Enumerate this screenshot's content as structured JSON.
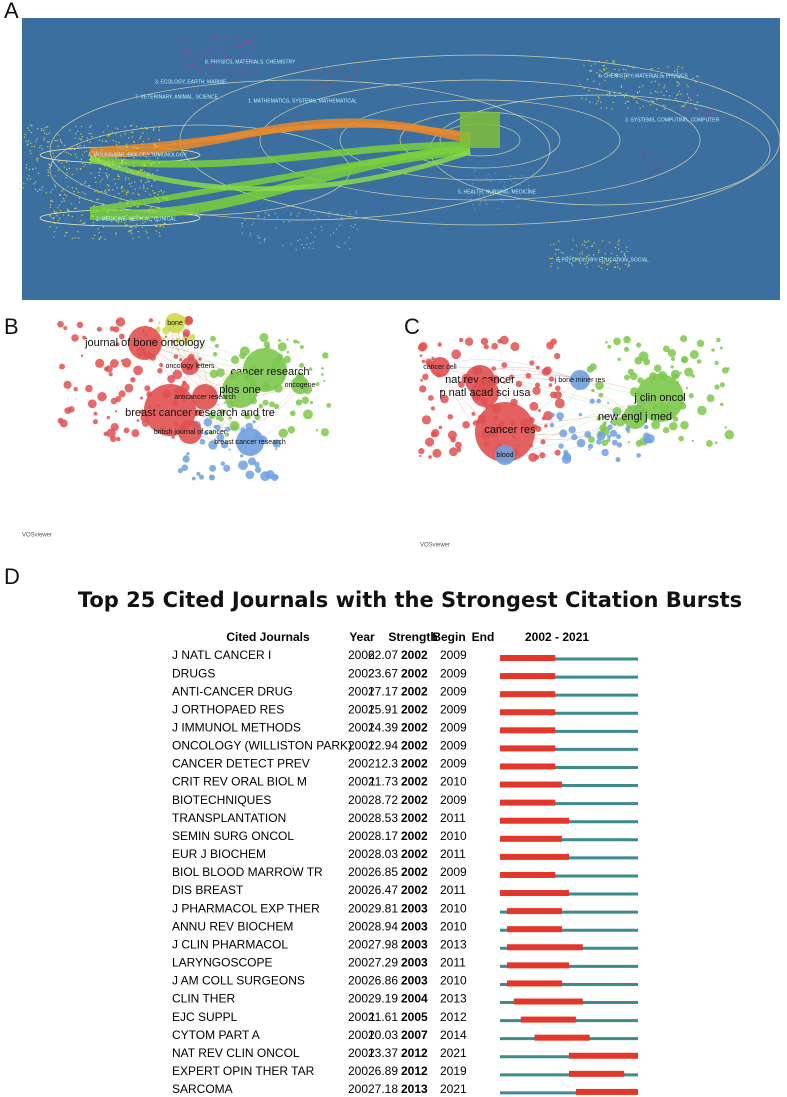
{
  "panels": {
    "a": {
      "label": "A",
      "clusters": [
        "8. PHYSICS, MATERIALS, CHEMISTRY",
        "3. ECOLOGY, EARTH, MARINE",
        "7. VETERINARY, ANIMAL, SCIENCE",
        "1. MATHEMATICS, SYSTEMS, MATHEMATICAL",
        "4. MOLECULAR, BIOLOGY, IMMUNOLOGY",
        "2. MEDICINE, MEDICAL, CLINICAL",
        "4. CHEMISTRY, MATERIALS, PHYSICS",
        "5. HEALTH, NURSING, MEDICINE",
        "6. PSYCHOLOGY, EDUCATION, SOCIAL",
        "3. SYSTEMS, COMPUTING, COMPUTER"
      ]
    },
    "b": {
      "label": "B",
      "nodes": [
        "cancer research",
        "plos one",
        "breast cancer research and tre",
        "journal of bone oncology",
        "bone",
        "anticancer research",
        "british journal of cancer",
        "breast cancer research",
        "oncogene",
        "oncology letters"
      ],
      "watermark": "VOSviewer"
    },
    "c": {
      "label": "C",
      "nodes": [
        "cancer res",
        "j clin oncol",
        "new engl j med",
        "nat rev cancer",
        "p natl acad sci usa",
        "j bone miner res",
        "blood",
        "cancer cell"
      ],
      "watermark": "VOSviewer"
    },
    "d": {
      "label": "D",
      "title": "Top 25 Cited Journals with the Strongest Citation Bursts",
      "table": {
        "headers": [
          "Cited Journals",
          "Year",
          "Strength",
          "Begin",
          "End"
        ],
        "range": [
          2002,
          2021
        ],
        "rows": [
          {
            "journal": "J NATL CANCER I",
            "year": 2002,
            "strength": 62.07,
            "begin": 2002,
            "end": 2009
          },
          {
            "journal": "DRUGS",
            "year": 2002,
            "strength": 23.67,
            "begin": 2002,
            "end": 2009
          },
          {
            "journal": "ANTI-CANCER DRUG",
            "year": 2002,
            "strength": 17.17,
            "begin": 2002,
            "end": 2009
          },
          {
            "journal": "J ORTHOPAED RES",
            "year": 2002,
            "strength": 15.91,
            "begin": 2002,
            "end": 2009
          },
          {
            "journal": "J IMMUNOL METHODS",
            "year": 2002,
            "strength": 14.39,
            "begin": 2002,
            "end": 2009
          },
          {
            "journal": "ONCOLOGY (WILLISTON PARK)",
            "year": 2002,
            "strength": 12.94,
            "begin": 2002,
            "end": 2009
          },
          {
            "journal": "CANCER DETECT PREV",
            "year": 2002,
            "strength": 12.3,
            "begin": 2002,
            "end": 2009
          },
          {
            "journal": "CRIT REV ORAL BIOL M",
            "year": 2002,
            "strength": 11.73,
            "begin": 2002,
            "end": 2010
          },
          {
            "journal": "BIOTECHNIQUES",
            "year": 2002,
            "strength": 8.72,
            "begin": 2002,
            "end": 2009
          },
          {
            "journal": "TRANSPLANTATION",
            "year": 2002,
            "strength": 8.53,
            "begin": 2002,
            "end": 2011
          },
          {
            "journal": "SEMIN SURG ONCOL",
            "year": 2002,
            "strength": 8.17,
            "begin": 2002,
            "end": 2010
          },
          {
            "journal": "EUR J BIOCHEM",
            "year": 2002,
            "strength": 8.03,
            "begin": 2002,
            "end": 2011
          },
          {
            "journal": "BIOL BLOOD MARROW TR",
            "year": 2002,
            "strength": 6.85,
            "begin": 2002,
            "end": 2009
          },
          {
            "journal": "DIS BREAST",
            "year": 2002,
            "strength": 6.47,
            "begin": 2002,
            "end": 2011
          },
          {
            "journal": "J PHARMACOL EXP THER",
            "year": 2002,
            "strength": 9.81,
            "begin": 2003,
            "end": 2010
          },
          {
            "journal": "ANNU REV BIOCHEM",
            "year": 2002,
            "strength": 8.94,
            "begin": 2003,
            "end": 2010
          },
          {
            "journal": "J CLIN PHARMACOL",
            "year": 2002,
            "strength": 7.98,
            "begin": 2003,
            "end": 2013
          },
          {
            "journal": "LARYNGOSCOPE",
            "year": 2002,
            "strength": 7.29,
            "begin": 2003,
            "end": 2011
          },
          {
            "journal": "J AM COLL SURGEONS",
            "year": 2002,
            "strength": 6.86,
            "begin": 2003,
            "end": 2010
          },
          {
            "journal": "CLIN THER",
            "year": 2002,
            "strength": 9.19,
            "begin": 2004,
            "end": 2013
          },
          {
            "journal": "EJC SUPPL",
            "year": 2002,
            "strength": 11.61,
            "begin": 2005,
            "end": 2012
          },
          {
            "journal": "CYTOM PART A",
            "year": 2002,
            "strength": 10.03,
            "begin": 2007,
            "end": 2014
          },
          {
            "journal": "NAT REV CLIN ONCOL",
            "year": 2002,
            "strength": 13.37,
            "begin": 2012,
            "end": 2021
          },
          {
            "journal": "EXPERT OPIN THER TAR",
            "year": 2002,
            "strength": 6.89,
            "begin": 2012,
            "end": 2019
          },
          {
            "journal": "SARCOMA",
            "year": 2002,
            "strength": 7.18,
            "begin": 2013,
            "end": 2021
          }
        ]
      }
    }
  }
}
